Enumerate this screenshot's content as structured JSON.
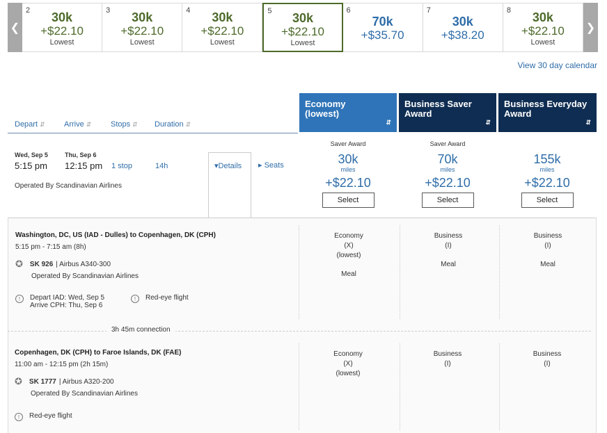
{
  "date_strip": {
    "prev_icon": "chevron-left",
    "next_icon": "chevron-right",
    "days": [
      {
        "day": "2",
        "miles": "30k",
        "price": "+$22.10",
        "note": "Lowest",
        "style": "green",
        "selected": false
      },
      {
        "day": "3",
        "miles": "30k",
        "price": "+$22.10",
        "note": "Lowest",
        "style": "green",
        "selected": false
      },
      {
        "day": "4",
        "miles": "30k",
        "price": "+$22.10",
        "note": "Lowest",
        "style": "green",
        "selected": false
      },
      {
        "day": "5",
        "miles": "30k",
        "price": "+$22.10",
        "note": "Lowest",
        "style": "green",
        "selected": true
      },
      {
        "day": "6",
        "miles": "70k",
        "price": "+$35.70",
        "note": "",
        "style": "blue",
        "selected": false
      },
      {
        "day": "7",
        "miles": "30k",
        "price": "+$38.20",
        "note": "",
        "style": "blue",
        "selected": false
      },
      {
        "day": "8",
        "miles": "30k",
        "price": "+$22.10",
        "note": "Lowest",
        "style": "green",
        "selected": false
      }
    ]
  },
  "view_calendar": "View 30 day calendar",
  "sort_headers": {
    "depart": "Depart",
    "arrive": "Arrive",
    "stops": "Stops",
    "duration": "Duration"
  },
  "cabins": {
    "economy": {
      "line1": "Economy",
      "line2": "(lowest)"
    },
    "business_saver": {
      "line1": "Business Saver",
      "line2": "Award"
    },
    "business_everyday": {
      "line1": "Business Everyday",
      "line2": "Award"
    }
  },
  "flight": {
    "depart_date": "Wed, Sep 5",
    "depart_time": "5:15 pm",
    "arrive_date": "Thu, Sep 6",
    "arrive_time": "12:15 pm",
    "stops": "1 stop",
    "duration": "14h",
    "operated_by": "Operated By Scandinavian Airlines",
    "details_label": "Details",
    "seats_label": "Seats",
    "fares": [
      {
        "label": "Saver Award",
        "miles": "30k",
        "unit": "miles",
        "price": "+$22.10",
        "button": "Select"
      },
      {
        "label": "Saver Award",
        "miles": "70k",
        "unit": "miles",
        "price": "+$22.10",
        "button": "Select"
      },
      {
        "label": "",
        "miles": "155k",
        "unit": "miles",
        "price": "+$22.10",
        "button": "Select"
      }
    ]
  },
  "details": {
    "segment1": {
      "route": "Washington, DC, US (IAD - Dulles) to Copenhagen, DK (CPH)",
      "times": "5:15 pm - 7:15 am (8h)",
      "flight_no": "SK 926",
      "aircraft": "| Airbus A340-300",
      "operated_by": "Operated By Scandinavian Airlines",
      "warning_depart": "Depart IAD: Wed, Sep 5",
      "warning_arrive": "Arrive CPH: Thu, Sep 6",
      "warning_redeye": "Red-eye flight",
      "cabins": [
        {
          "name": "Economy",
          "code": "(X)",
          "extra": "(lowest)",
          "meal": "Meal"
        },
        {
          "name": "Business",
          "code": "(I)",
          "extra": "",
          "meal": "Meal"
        },
        {
          "name": "Business",
          "code": "(I)",
          "extra": "",
          "meal": "Meal"
        }
      ]
    },
    "connection": "3h 45m connection",
    "segment2": {
      "route": "Copenhagen, DK (CPH) to Faroe Islands, DK (FAE)",
      "times": "11:00 am - 12:15 pm (2h 15m)",
      "flight_no": "SK 1777",
      "aircraft": "| Airbus A320-200",
      "operated_by": "Operated By Scandinavian Airlines",
      "warning_redeye": "Red-eye flight",
      "cabins": [
        {
          "name": "Economy",
          "code": "(X)",
          "extra": "(lowest)"
        },
        {
          "name": "Business",
          "code": "(I)",
          "extra": ""
        },
        {
          "name": "Business",
          "code": "(I)",
          "extra": ""
        }
      ]
    }
  },
  "colors": {
    "green": "#4d6a2a",
    "blue": "#2f6da8",
    "economy_header": "#2f74b8",
    "business_header": "#0f2d52"
  }
}
